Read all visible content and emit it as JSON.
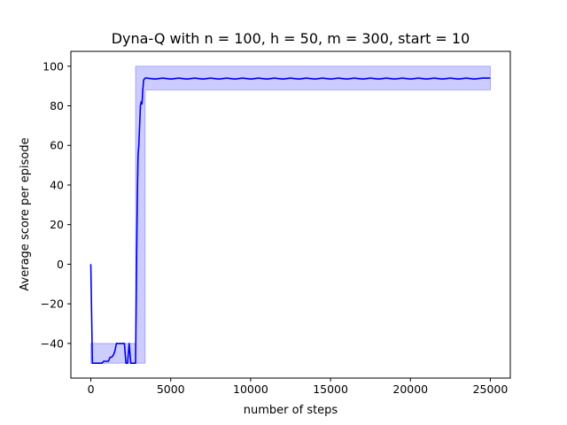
{
  "chart_data": {
    "type": "line",
    "title": "Dyna-Q with n = 100, h = 50, m = 300, start = 10",
    "xlabel": "number of steps",
    "ylabel": "Average score per episode",
    "xlim": [
      -1250,
      26250
    ],
    "ylim": [
      -57.5,
      107.5
    ],
    "x_ticks": [
      0,
      5000,
      10000,
      15000,
      20000,
      25000
    ],
    "x_tick_labels": [
      "0",
      "5000",
      "10000",
      "15000",
      "20000",
      "25000"
    ],
    "y_ticks": [
      -40,
      -20,
      0,
      20,
      40,
      60,
      80,
      100
    ],
    "y_tick_labels": [
      "−40",
      "−20",
      "0",
      "20",
      "40",
      "60",
      "80",
      "100"
    ],
    "grid": false,
    "legend": "none",
    "colors": {
      "line": "#0000ee",
      "band_fill": "#0000ff",
      "band_opacity": 0.2
    },
    "series": [
      {
        "x": [
          0,
          100,
          200,
          300,
          400,
          500,
          600,
          700,
          800,
          900,
          1000,
          1100,
          1200,
          1300,
          1400,
          1500,
          1600,
          1700,
          1800,
          1900,
          2000,
          2100,
          2200,
          2300,
          2400,
          2500,
          2600,
          2700,
          2800,
          2850,
          2900,
          2950,
          3000,
          3050,
          3100,
          3150,
          3200,
          3250,
          3300,
          3400,
          3500,
          4000,
          4500,
          5000,
          5500,
          6000,
          6500,
          7000,
          7500,
          8000,
          8500,
          9000,
          9500,
          10000,
          10500,
          11000,
          11500,
          12000,
          12500,
          13000,
          13500,
          14000,
          14500,
          15000,
          15500,
          16000,
          16500,
          17000,
          17500,
          18000,
          18500,
          19000,
          19500,
          20000,
          20500,
          21000,
          21500,
          22000,
          22500,
          23000,
          23500,
          24000,
          24500,
          25000
        ],
        "y": [
          0,
          -50,
          -50,
          -50,
          -50,
          -50,
          -50,
          -50,
          -49,
          -49,
          -49,
          -49,
          -47,
          -47,
          -46,
          -44,
          -40,
          -40,
          -40,
          -40,
          -40,
          -40,
          -50,
          -50,
          -40,
          -50,
          -50,
          -50,
          -50,
          -10,
          30,
          55,
          60,
          70,
          80,
          82,
          81,
          88,
          93,
          94,
          94,
          93.5,
          94,
          93.5,
          94,
          93.5,
          94,
          93.5,
          94,
          93.5,
          94,
          93.5,
          94,
          93.5,
          94,
          93.5,
          94,
          93.5,
          94,
          93.5,
          94,
          93.5,
          94,
          93.5,
          94,
          93.5,
          94,
          93.5,
          94,
          93.5,
          94,
          93.5,
          94,
          93.5,
          94,
          93.5,
          94,
          93.5,
          94,
          93.5,
          94,
          93.5,
          94,
          94
        ],
        "band_x": [
          0,
          1500,
          1500,
          2800,
          2800,
          3400,
          3400,
          25000
        ],
        "band_lower": [
          -50,
          -50,
          -50,
          -50,
          -50,
          -50,
          88,
          88
        ],
        "band_upper": [
          -40,
          -40,
          -40,
          -40,
          100,
          100,
          100,
          100
        ]
      }
    ]
  }
}
